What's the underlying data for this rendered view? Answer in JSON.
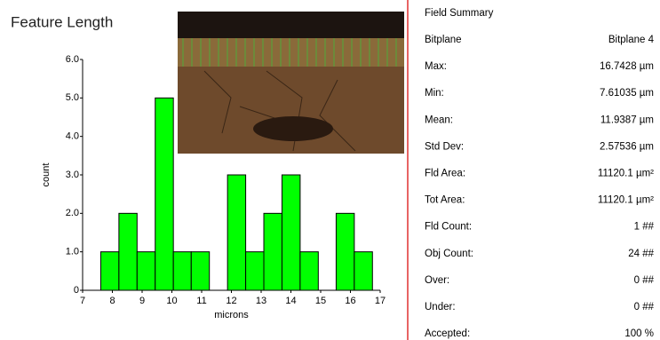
{
  "chart_data": {
    "type": "histogram",
    "title": "Feature Length",
    "xlabel": "microns",
    "ylabel": "count",
    "bins": [
      7.61,
      8.22,
      8.83,
      9.44,
      10.05,
      10.65,
      11.26,
      11.87,
      12.48,
      13.09,
      13.7,
      14.31,
      14.92,
      15.52,
      16.13,
      16.74
    ],
    "values": [
      1,
      2,
      1,
      5,
      1,
      1,
      0,
      3,
      1,
      2,
      3,
      1,
      0,
      2,
      1
    ],
    "color": "#00ff00",
    "xlim": [
      7,
      17
    ],
    "xticks": [
      7,
      8,
      9,
      10,
      11,
      12,
      13,
      14,
      15,
      16,
      17
    ],
    "ylim": [
      0,
      6
    ],
    "yticks": [
      0,
      {
        "value": 1,
        "label": "1.0"
      },
      {
        "value": 2,
        "label": "2.0"
      },
      {
        "value": 3,
        "label": "3.0"
      },
      {
        "value": 4,
        "label": "4.0"
      },
      {
        "value": 5,
        "label": "5.0"
      },
      {
        "value": 6,
        "label": "6.0"
      }
    ]
  },
  "field_summary": {
    "title": "Field Summary",
    "rows": [
      [
        "Bitplane",
        "Bitplane 4"
      ],
      [
        "Max:",
        "16.7428 µm"
      ],
      [
        "Min:",
        "7.61035 µm"
      ],
      [
        "Mean:",
        "11.9387 µm"
      ],
      [
        "Std Dev:",
        "2.57536 µm"
      ],
      [
        "Fld Area:",
        "11120.1 µm²"
      ],
      [
        "Tot Area:",
        "11120.1 µm²"
      ],
      [
        "Fld Count:",
        "1 ##"
      ],
      [
        "Obj Count:",
        "24 ##"
      ],
      [
        "Over:",
        "0 ##"
      ],
      [
        "Under:",
        "0 ##"
      ],
      [
        "Accepted:",
        "100 %"
      ]
    ]
  }
}
